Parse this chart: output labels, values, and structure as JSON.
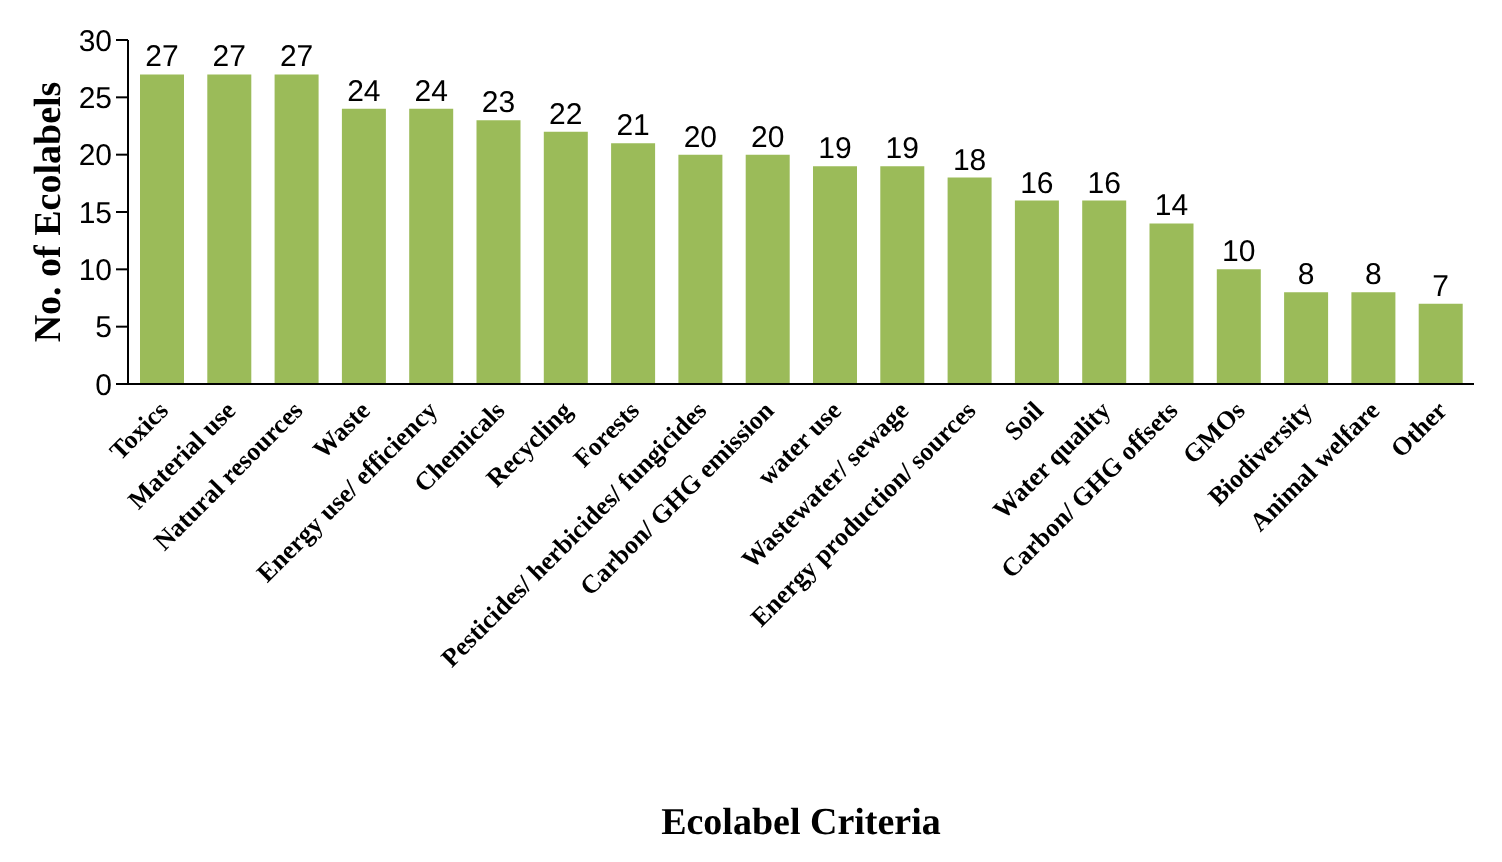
{
  "chart_data": {
    "type": "bar",
    "xlabel": "Ecolabel Criteria",
    "ylabel": "No. of Ecolabels",
    "categories": [
      "Toxics",
      "Material use",
      "Natural resources",
      "Waste",
      "Energy use/ efficiency",
      "Chemicals",
      "Recycling",
      "Forests",
      "Pesticides/ herbicides/ fungicides",
      "Carbon/ GHG emission",
      "water use",
      "Wastewater/ sewage",
      "Energy production/ sources",
      "Soil",
      "Water quality",
      "Carbon/ GHG offsets",
      "GMOs",
      "Biodiversity",
      "Animal welfare",
      "Other"
    ],
    "values": [
      27,
      27,
      27,
      24,
      24,
      23,
      22,
      21,
      20,
      20,
      19,
      19,
      18,
      16,
      16,
      14,
      10,
      8,
      8,
      7
    ],
    "color": "#9bbb59",
    "ylim": [
      0,
      30
    ],
    "yticks": [
      0,
      5,
      10,
      15,
      20,
      25,
      30
    ],
    "grid": false,
    "data_labels": true
  }
}
